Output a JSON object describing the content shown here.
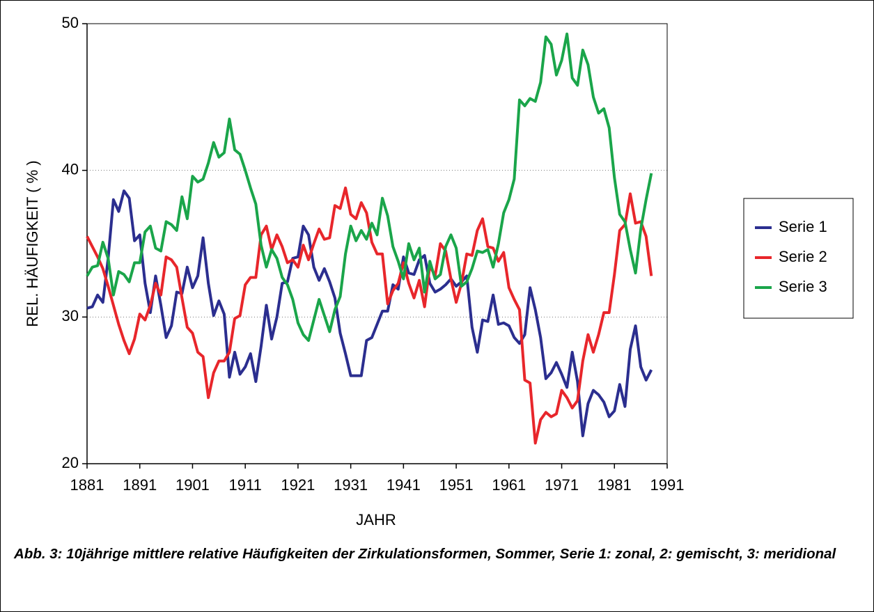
{
  "chart_data": {
    "type": "line",
    "x_label": "JAHR",
    "y_label": "REL. HÄUFIGKEIT ( % )",
    "caption": "Abb. 3: 10jährige mittlere relative Häufigkeiten der Zirkulationsformen, Sommer, Serie 1: zonal, 2: gemischt, 3: meridional",
    "x": [
      1881,
      1882,
      1883,
      1884,
      1885,
      1886,
      1887,
      1888,
      1889,
      1890,
      1891,
      1892,
      1893,
      1894,
      1895,
      1896,
      1897,
      1898,
      1899,
      1900,
      1901,
      1902,
      1903,
      1904,
      1905,
      1906,
      1907,
      1908,
      1909,
      1910,
      1911,
      1912,
      1913,
      1914,
      1915,
      1916,
      1917,
      1918,
      1919,
      1920,
      1921,
      1922,
      1923,
      1924,
      1925,
      1926,
      1927,
      1928,
      1929,
      1930,
      1931,
      1932,
      1933,
      1934,
      1935,
      1936,
      1937,
      1938,
      1939,
      1940,
      1941,
      1942,
      1943,
      1944,
      1945,
      1946,
      1947,
      1948,
      1949,
      1950,
      1951,
      1952,
      1953,
      1954,
      1955,
      1956,
      1957,
      1958,
      1959,
      1960,
      1961,
      1962,
      1963,
      1964,
      1965,
      1966,
      1967,
      1968,
      1969,
      1970,
      1971,
      1972,
      1973,
      1974,
      1975,
      1976,
      1977,
      1978,
      1979,
      1980,
      1981,
      1982,
      1983,
      1984,
      1985,
      1986,
      1987,
      1988
    ],
    "series": [
      {
        "name": "Serie 1",
        "color": "#2b2e8f",
        "values": [
          30.6,
          30.7,
          31.5,
          31.0,
          34.0,
          38.0,
          37.2,
          38.6,
          38.1,
          35.2,
          35.6,
          32.3,
          30.3,
          32.8,
          30.8,
          28.6,
          29.4,
          31.7,
          31.6,
          33.4,
          32.0,
          32.8,
          35.4,
          32.3,
          30.1,
          31.1,
          30.2,
          25.9,
          27.6,
          26.1,
          26.6,
          27.5,
          25.6,
          28.0,
          30.8,
          28.5,
          30.0,
          32.3,
          32.4,
          34.0,
          34.1,
          36.2,
          35.6,
          33.4,
          32.5,
          33.3,
          32.4,
          31.3,
          28.9,
          27.5,
          26.0,
          26.0,
          26.0,
          28.4,
          28.6,
          29.5,
          30.4,
          30.4,
          32.2,
          31.9,
          34.1,
          33.0,
          32.9,
          33.9,
          34.2,
          32.3,
          31.7,
          31.9,
          32.2,
          32.6,
          32.1,
          32.4,
          32.8,
          29.3,
          27.6,
          29.8,
          29.7,
          31.5,
          29.5,
          29.6,
          29.4,
          28.6,
          28.2,
          28.8,
          32.0,
          30.5,
          28.6,
          25.8,
          26.2,
          26.9,
          26.1,
          25.2,
          27.6,
          25.6,
          21.9,
          24.1,
          25.0,
          24.7,
          24.2,
          23.2,
          23.6,
          25.4,
          23.9,
          27.8,
          29.4,
          26.6,
          25.7,
          26.4
        ]
      },
      {
        "name": "Serie 2",
        "color": "#e8262b",
        "values": [
          35.5,
          34.8,
          34.1,
          33.3,
          32.1,
          30.8,
          29.5,
          28.4,
          27.5,
          28.5,
          30.2,
          29.8,
          30.8,
          32.3,
          31.5,
          34.1,
          33.9,
          33.4,
          31.3,
          29.3,
          28.9,
          27.6,
          27.3,
          24.5,
          26.2,
          27.0,
          27.0,
          27.6,
          29.9,
          30.1,
          32.2,
          32.7,
          32.7,
          35.6,
          36.2,
          34.6,
          35.6,
          34.8,
          33.7,
          33.9,
          33.4,
          34.9,
          33.9,
          35.0,
          36.0,
          35.3,
          35.4,
          37.6,
          37.4,
          38.8,
          37.0,
          36.7,
          37.8,
          37.1,
          35.1,
          34.3,
          34.3,
          30.9,
          31.8,
          32.3,
          33.7,
          32.3,
          31.3,
          32.5,
          30.7,
          33.5,
          32.8,
          35.0,
          34.5,
          32.6,
          31.0,
          32.3,
          34.3,
          34.2,
          35.9,
          36.7,
          34.8,
          34.7,
          33.8,
          34.4,
          32.0,
          31.2,
          30.5,
          25.7,
          25.5,
          21.4,
          23.0,
          23.5,
          23.2,
          23.4,
          25.0,
          24.5,
          23.8,
          24.3,
          27.0,
          28.8,
          27.6,
          28.8,
          30.3,
          30.3,
          32.9,
          35.9,
          36.3,
          38.4,
          36.4,
          36.5,
          35.5,
          32.8
        ]
      },
      {
        "name": "Serie 3",
        "color": "#1aa54a",
        "values": [
          32.8,
          33.4,
          33.5,
          35.1,
          34.0,
          31.5,
          33.1,
          32.9,
          32.4,
          33.7,
          33.7,
          35.8,
          36.2,
          34.7,
          34.5,
          36.5,
          36.3,
          35.9,
          38.2,
          36.7,
          39.6,
          39.2,
          39.4,
          40.5,
          41.9,
          40.9,
          41.2,
          43.5,
          41.4,
          41.1,
          40.0,
          38.8,
          37.7,
          34.9,
          33.4,
          34.6,
          34.0,
          32.7,
          32.2,
          31.2,
          29.6,
          28.8,
          28.4,
          29.8,
          31.2,
          30.1,
          29.0,
          30.5,
          31.4,
          34.3,
          36.2,
          35.2,
          35.9,
          35.3,
          36.4,
          35.6,
          38.1,
          36.9,
          34.8,
          33.8,
          32.6,
          35.0,
          33.9,
          34.7,
          31.7,
          33.8,
          32.6,
          32.9,
          34.8,
          35.6,
          34.7,
          32.1,
          32.4,
          33.3,
          34.5,
          34.4,
          34.6,
          33.4,
          35.0,
          37.1,
          38.0,
          39.4,
          44.8,
          44.4,
          44.9,
          44.7,
          46.0,
          49.1,
          48.6,
          46.5,
          47.5,
          49.3,
          46.3,
          45.8,
          48.2,
          47.2,
          45.0,
          43.9,
          44.2,
          42.9,
          39.5,
          37.0,
          36.5,
          34.6,
          33.0,
          36.0,
          38.0,
          39.8
        ]
      }
    ],
    "xlim": [
      1881,
      1991
    ],
    "xticks": [
      1881,
      1891,
      1901,
      1911,
      1921,
      1931,
      1941,
      1951,
      1961,
      1971,
      1981,
      1991
    ],
    "ylim": [
      20,
      50
    ],
    "yticks": [
      20,
      30,
      40,
      50
    ],
    "grid": true,
    "legend": "right"
  }
}
